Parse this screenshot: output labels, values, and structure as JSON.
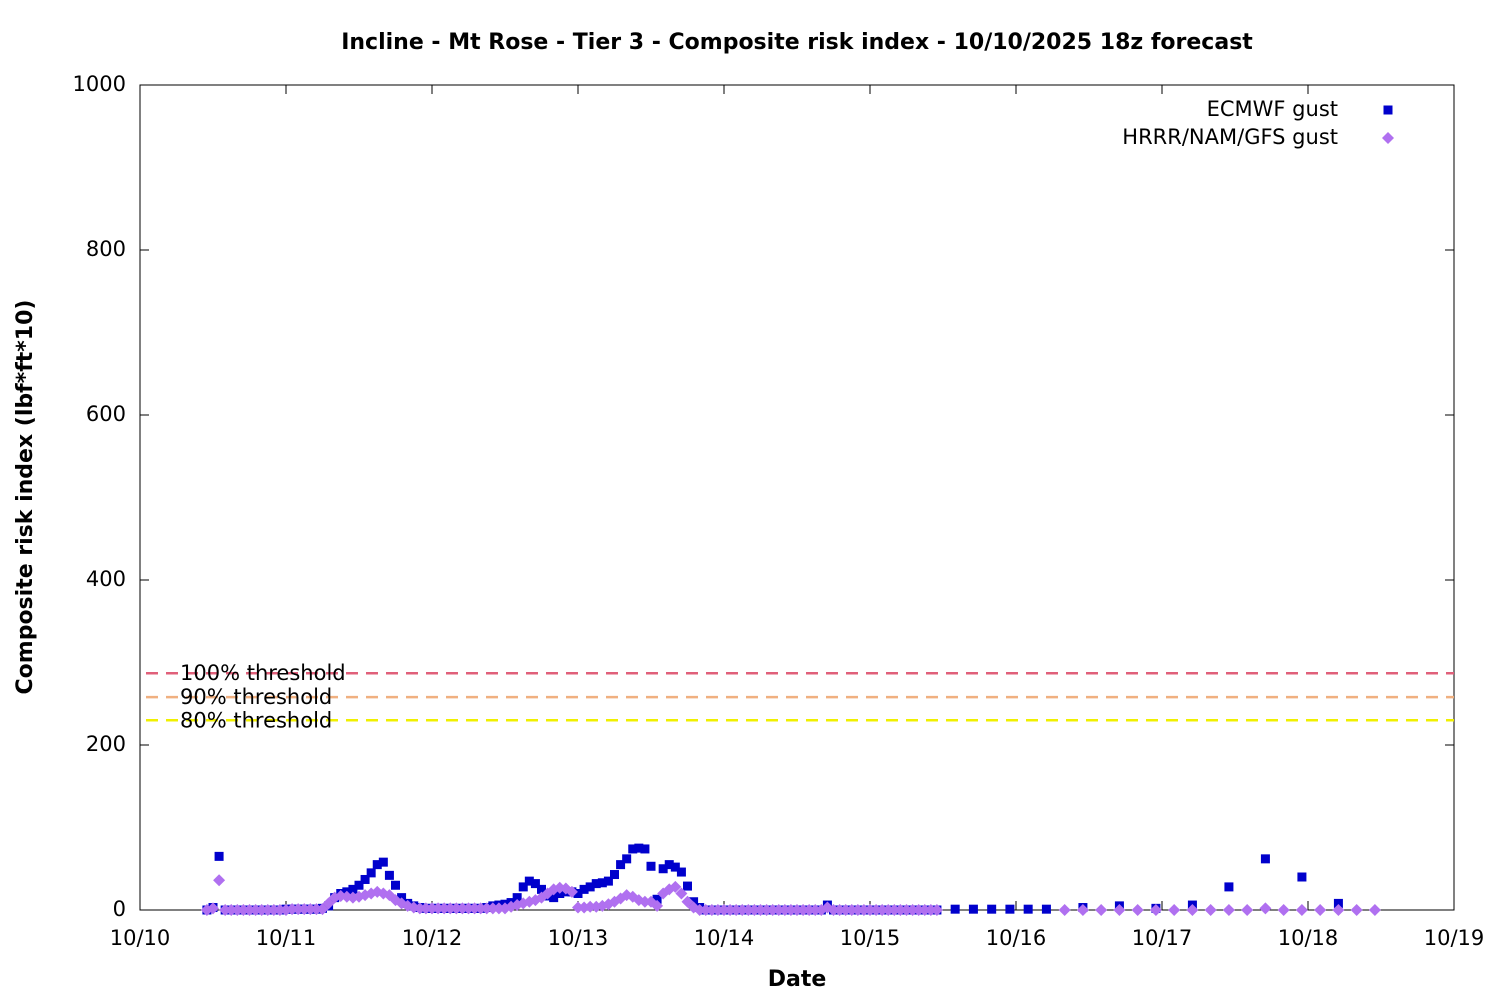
{
  "chart_data": {
    "type": "scatter",
    "title": "Incline - Mt Rose - Tier 3 - Composite risk index - 10/10/2025 18z forecast",
    "x_label": "Date",
    "y_label": "Composite risk index (lbf*ft*10)",
    "xlim": [
      0,
      216
    ],
    "xticks": [
      {
        "value": 0,
        "label": "10/10"
      },
      {
        "value": 24,
        "label": "10/11"
      },
      {
        "value": 48,
        "label": "10/12"
      },
      {
        "value": 72,
        "label": "10/13"
      },
      {
        "value": 96,
        "label": "10/14"
      },
      {
        "value": 120,
        "label": "10/15"
      },
      {
        "value": 144,
        "label": "10/16"
      },
      {
        "value": 168,
        "label": "10/17"
      },
      {
        "value": 192,
        "label": "10/18"
      },
      {
        "value": 216,
        "label": "10/19"
      }
    ],
    "ylim": [
      0,
      1000
    ],
    "yticks": [
      0,
      200,
      400,
      600,
      800,
      1000
    ],
    "grid": false,
    "legend": "top-right",
    "thresholds": [
      {
        "label": "100% threshold",
        "value": 287,
        "color": "#e0607a"
      },
      {
        "label": "90% threshold",
        "value": 258,
        "color": "#f0b080"
      },
      {
        "label": "80% threshold",
        "value": 230,
        "color": "#f0f000"
      }
    ],
    "series": [
      {
        "name": "ECMWF gust",
        "color": "#0000cc",
        "marker": "square",
        "x": [
          11,
          12,
          13,
          14,
          15,
          16,
          17,
          18,
          19,
          20,
          21,
          22,
          23,
          24,
          25,
          26,
          27,
          28,
          29,
          30,
          31,
          32,
          33,
          34,
          35,
          36,
          37,
          38,
          39,
          40,
          41,
          42,
          43,
          44,
          45,
          46,
          47,
          48,
          49,
          50,
          51,
          52,
          53,
          54,
          55,
          56,
          57,
          58,
          59,
          60,
          61,
          62,
          63,
          64,
          65,
          66,
          67,
          68,
          69,
          70,
          71,
          72,
          73,
          74,
          75,
          76,
          77,
          78,
          79,
          80,
          81,
          82,
          83,
          84,
          85,
          86,
          87,
          88,
          89,
          90,
          91,
          92,
          93,
          94,
          95,
          96,
          97,
          98,
          99,
          100,
          101,
          102,
          103,
          104,
          105,
          106,
          107,
          108,
          109,
          110,
          111,
          112,
          113,
          114,
          115,
          116,
          117,
          118,
          119,
          120,
          121,
          122,
          123,
          124,
          125,
          126,
          127,
          128,
          129,
          130,
          131,
          134,
          137,
          140,
          143,
          146,
          149,
          155,
          161,
          167,
          173,
          179,
          185,
          191,
          197
        ],
        "values": [
          0,
          3,
          65,
          0,
          0,
          0,
          0,
          0,
          0,
          0,
          0,
          0,
          0,
          1,
          1,
          1,
          1,
          1,
          1,
          2,
          5,
          15,
          20,
          22,
          25,
          30,
          37,
          45,
          55,
          58,
          42,
          30,
          15,
          8,
          5,
          3,
          2,
          2,
          2,
          2,
          2,
          2,
          2,
          2,
          2,
          2,
          3,
          5,
          6,
          7,
          9,
          15,
          28,
          35,
          32,
          25,
          17,
          15,
          20,
          22,
          22,
          20,
          25,
          28,
          32,
          33,
          35,
          43,
          55,
          62,
          74,
          75,
          74,
          53,
          13,
          50,
          55,
          52,
          46,
          29,
          10,
          3,
          0,
          0,
          0,
          0,
          0,
          0,
          0,
          0,
          0,
          0,
          0,
          0,
          0,
          0,
          0,
          0,
          0,
          0,
          0,
          0,
          6,
          0,
          0,
          0,
          0,
          0,
          0,
          0,
          0,
          0,
          0,
          0,
          0,
          0,
          0,
          0,
          0,
          0,
          0,
          1,
          1,
          1,
          1,
          1,
          1,
          3,
          5,
          2,
          6,
          28,
          62,
          40,
          8
        ]
      },
      {
        "name": "HRRR/NAM/GFS gust",
        "color": "#b070f0",
        "marker": "diamond",
        "x": [
          11,
          12,
          13,
          14,
          15,
          16,
          17,
          18,
          19,
          20,
          21,
          22,
          23,
          24,
          25,
          26,
          27,
          28,
          29,
          30,
          31,
          32,
          33,
          34,
          35,
          36,
          37,
          38,
          39,
          40,
          41,
          42,
          43,
          44,
          45,
          46,
          47,
          48,
          49,
          50,
          51,
          52,
          53,
          54,
          55,
          56,
          57,
          58,
          59,
          60,
          61,
          62,
          63,
          64,
          65,
          66,
          67,
          68,
          69,
          70,
          71,
          72,
          73,
          74,
          75,
          76,
          77,
          78,
          79,
          80,
          81,
          82,
          83,
          84,
          85,
          86,
          87,
          88,
          89,
          90,
          91,
          92,
          93,
          94,
          95,
          96,
          97,
          98,
          99,
          100,
          101,
          102,
          103,
          104,
          105,
          106,
          107,
          108,
          109,
          110,
          111,
          112,
          113,
          114,
          115,
          116,
          117,
          118,
          119,
          120,
          121,
          122,
          123,
          124,
          125,
          126,
          127,
          128,
          129,
          130,
          131,
          152,
          155,
          158,
          161,
          164,
          167,
          170,
          173,
          176,
          179,
          182,
          185,
          188,
          191,
          194,
          197,
          200,
          203
        ],
        "values": [
          0,
          2,
          36,
          0,
          0,
          0,
          0,
          0,
          0,
          0,
          0,
          0,
          0,
          0,
          1,
          1,
          1,
          1,
          1,
          1,
          8,
          15,
          17,
          16,
          15,
          16,
          18,
          20,
          22,
          20,
          18,
          12,
          8,
          5,
          3,
          2,
          2,
          2,
          2,
          2,
          2,
          2,
          2,
          2,
          2,
          2,
          2,
          2,
          2,
          2,
          4,
          6,
          8,
          10,
          12,
          15,
          20,
          25,
          27,
          26,
          22,
          3,
          3,
          4,
          4,
          5,
          7,
          10,
          14,
          18,
          16,
          12,
          10,
          10,
          5,
          20,
          25,
          28,
          20,
          10,
          3,
          0,
          0,
          0,
          0,
          0,
          0,
          0,
          0,
          0,
          0,
          0,
          0,
          0,
          0,
          0,
          0,
          0,
          0,
          0,
          0,
          0,
          3,
          0,
          0,
          0,
          0,
          0,
          0,
          0,
          0,
          0,
          0,
          0,
          0,
          0,
          0,
          0,
          0,
          0,
          0,
          0,
          0,
          0,
          0,
          0,
          0,
          0,
          0,
          0,
          0,
          0,
          2,
          0,
          0,
          0,
          0,
          0,
          0
        ]
      }
    ]
  }
}
